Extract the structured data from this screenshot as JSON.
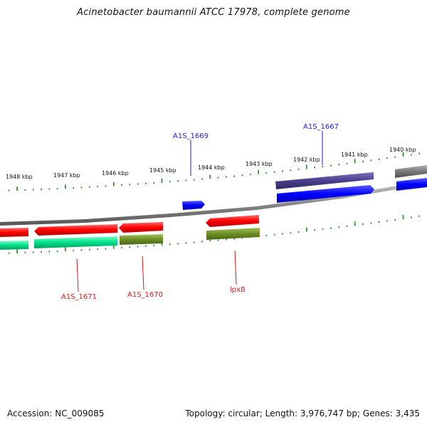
{
  "header": {
    "title": "Acinetobacter baumannii ATCC 17978, complete genome"
  },
  "footer": {
    "accession": "Accession: NC_009085",
    "summary": "Topology: circular; Length: 3,976,747 bp; Genes: 3,435"
  },
  "ruler": {
    "labels": [
      "1948 kbp",
      "1947 kbp",
      "1946 kbp",
      "1945 kbp",
      "1944 kbp",
      "1943 kbp",
      "1942 kbp",
      "1941 kbp",
      "1940 kbp"
    ]
  },
  "genes": {
    "top": [
      {
        "label": "A1S_1669",
        "color": "#1a1aee"
      },
      {
        "label": "A1S_1667",
        "color": "#1a1aee"
      }
    ],
    "bottom": [
      {
        "label": "A1S_1671",
        "color": "#e0151c"
      },
      {
        "label": "A1S_1670",
        "color": "#e0151c"
      },
      {
        "label": "lpxB",
        "color": "#e0151c"
      }
    ]
  },
  "colors": {
    "forward_cds": "#0000ff",
    "forward_feature": "#4a3f8c",
    "reverse_cds": "#ff0000",
    "reverse_feature_a": "#00e08a",
    "reverse_feature_b": "#6b8e23",
    "unknown": "#777777",
    "backbone": "#8a8a8a",
    "ticks": "#1d8a1d"
  }
}
